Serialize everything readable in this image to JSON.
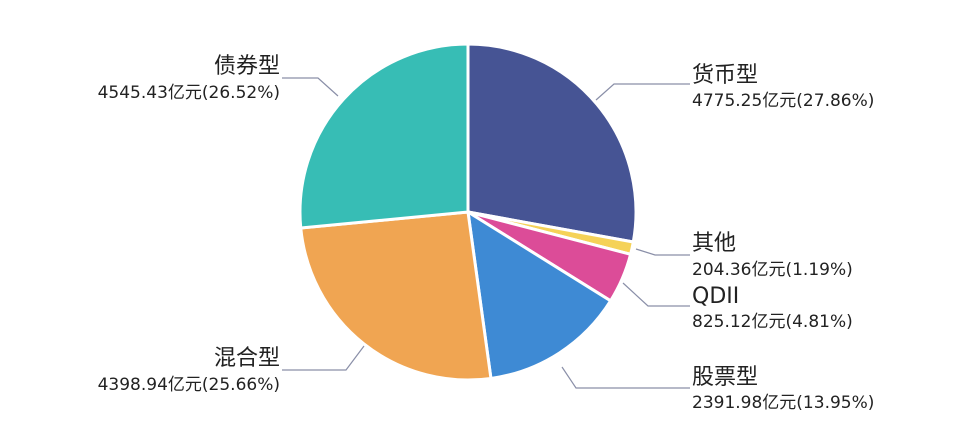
{
  "chart_data": {
    "type": "pie",
    "title": "",
    "unit": "亿元",
    "slices": [
      {
        "name": "货币型",
        "value": 4775.25,
        "percent": 27.86,
        "label": "4775.25亿元(27.86%)",
        "color": "#465494"
      },
      {
        "name": "其他",
        "value": 204.36,
        "percent": 1.19,
        "label": "204.36亿元(1.19%)",
        "color": "#F5D258"
      },
      {
        "name": "QDII",
        "value": 825.12,
        "percent": 4.81,
        "label": "825.12亿元(4.81%)",
        "color": "#DC4C98"
      },
      {
        "name": "股票型",
        "value": 2391.98,
        "percent": 13.95,
        "label": "2391.98亿元(13.95%)",
        "color": "#3E8AD4"
      },
      {
        "name": "混合型",
        "value": 4398.94,
        "percent": 25.66,
        "label": "4398.94亿元(25.66%)",
        "color": "#F0A552"
      },
      {
        "name": "债券型",
        "value": 4545.43,
        "percent": 26.52,
        "label": "4545.43亿元(26.52%)",
        "color": "#37BDB5"
      }
    ]
  }
}
